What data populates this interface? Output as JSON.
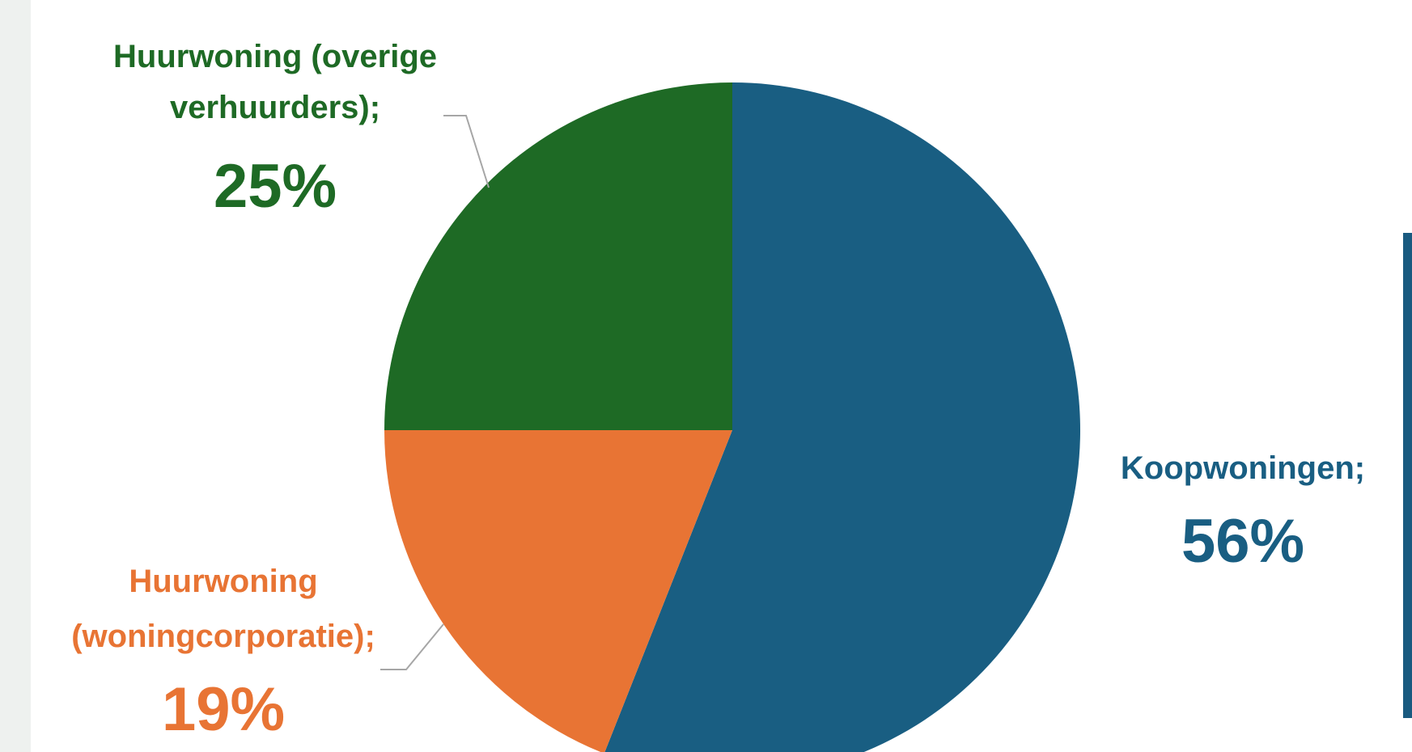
{
  "chart_data": {
    "type": "pie",
    "title": "",
    "slices": [
      {
        "name_lines": [
          "Koopwoningen;"
        ],
        "value": 56,
        "value_label": "56%",
        "color": "#195e82"
      },
      {
        "name_lines": [
          "Huurwoning",
          "(woningcorporatie);"
        ],
        "value": 19,
        "value_label": "19%",
        "color": "#e87434"
      },
      {
        "name_lines": [
          "Huurwoning (overige",
          "verhuurders);"
        ],
        "value": 25,
        "value_label": "25%",
        "color": "#1e6a25"
      }
    ],
    "start_angle": "12 o'clock",
    "direction": "clockwise",
    "leader_color": "#a6a6a6"
  }
}
